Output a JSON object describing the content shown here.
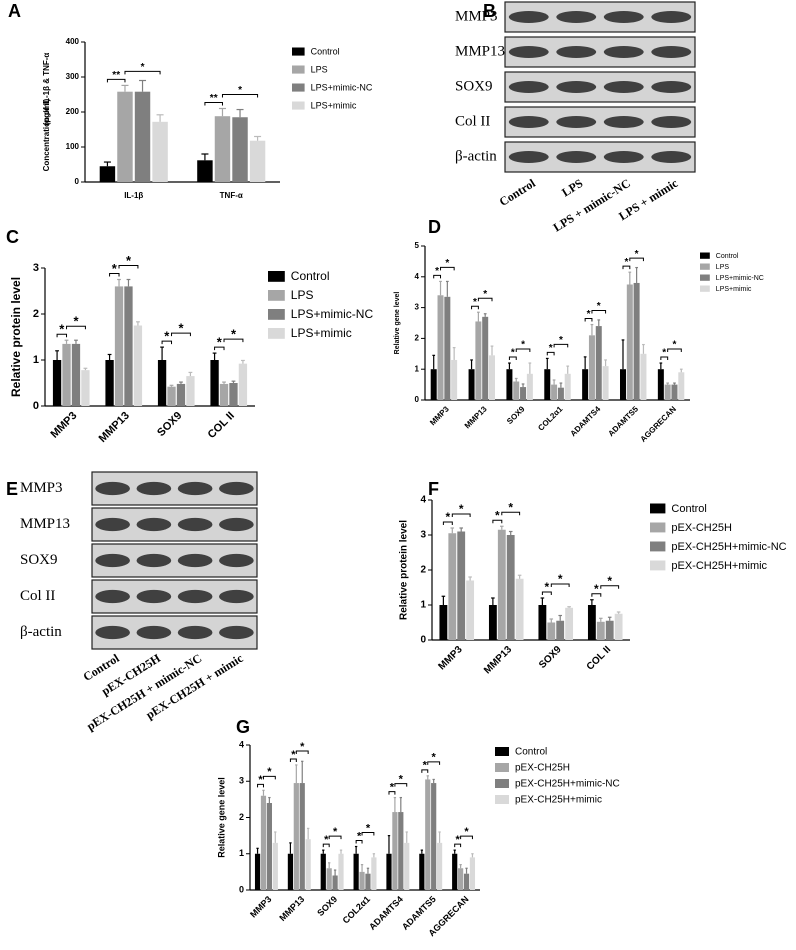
{
  "chart_data": [
    {
      "type": "bar",
      "label": "A",
      "ylabel": [
        "Concentration of IL-1β & TNF-α",
        "(pg/ml)"
      ],
      "categories": [
        "IL-1β",
        "TNF-α"
      ],
      "ylim": [
        0,
        400
      ],
      "yticks": [
        0,
        100,
        200,
        300,
        400
      ],
      "series": [
        {
          "name": "Control",
          "color": "#000000",
          "values": [
            45,
            62
          ],
          "errors": [
            12,
            18
          ]
        },
        {
          "name": "LPS",
          "color": "#a6a6a6",
          "values": [
            258,
            188
          ],
          "errors": [
            18,
            22
          ]
        },
        {
          "name": "LPS+mimic-NC",
          "color": "#7f7f7f",
          "values": [
            258,
            185
          ],
          "errors": [
            32,
            22
          ]
        },
        {
          "name": "LPS+mimic",
          "color": "#d9d9d9",
          "values": [
            172,
            118
          ],
          "errors": [
            20,
            12
          ]
        }
      ],
      "significance": [
        [
          "**",
          "*"
        ],
        [
          "**",
          "*"
        ]
      ]
    },
    {
      "type": "bar",
      "label": "C",
      "ylabel": "Relative protein level",
      "categories": [
        "MMP3",
        "MMP13",
        "SOX9",
        "COL II"
      ],
      "ylim": [
        0,
        3
      ],
      "yticks": [
        0,
        1,
        2,
        3
      ],
      "series": [
        {
          "name": "Control",
          "color": "#000000",
          "values": [
            1.0,
            1.0,
            1.0,
            1.0
          ],
          "errors": [
            0.2,
            0.12,
            0.28,
            0.15
          ]
        },
        {
          "name": "LPS",
          "color": "#a6a6a6",
          "values": [
            1.35,
            2.6,
            0.42,
            0.48
          ],
          "errors": [
            0.08,
            0.15,
            0.03,
            0.04
          ]
        },
        {
          "name": "LPS+mimic-NC",
          "color": "#7f7f7f",
          "values": [
            1.35,
            2.6,
            0.48,
            0.5
          ],
          "errors": [
            0.08,
            0.15,
            0.04,
            0.04
          ]
        },
        {
          "name": "LPS+mimic",
          "color": "#d9d9d9",
          "values": [
            0.78,
            1.75,
            0.65,
            0.92
          ],
          "errors": [
            0.04,
            0.08,
            0.08,
            0.07
          ]
        }
      ],
      "significance": [
        [
          "*",
          "*"
        ],
        [
          "*",
          "*"
        ],
        [
          "*",
          "*"
        ],
        [
          "*",
          "*"
        ]
      ]
    },
    {
      "type": "bar",
      "label": "D",
      "ylabel": "Relative gene level",
      "categories": [
        "MMP3",
        "MMP13",
        "SOX9",
        "COL2α1",
        "ADAMTS4",
        "ADAMTS5",
        "AGGRECAN"
      ],
      "ylim": [
        0,
        5
      ],
      "yticks": [
        0,
        1,
        2,
        3,
        4,
        5
      ],
      "series": [
        {
          "name": "Control",
          "color": "#000000",
          "values": [
            1,
            1,
            1,
            1,
            1,
            1,
            1
          ],
          "errors": [
            0.45,
            0.3,
            0.2,
            0.35,
            0.4,
            0.95,
            0.2
          ]
        },
        {
          "name": "LPS",
          "color": "#a6a6a6",
          "values": [
            3.4,
            2.55,
            0.6,
            0.5,
            2.1,
            3.75,
            0.5
          ],
          "errors": [
            0.45,
            0.3,
            0.1,
            0.15,
            0.35,
            0.4,
            0.05
          ]
        },
        {
          "name": "LPS+mimic-NC",
          "color": "#7f7f7f",
          "values": [
            3.35,
            2.7,
            0.42,
            0.4,
            2.4,
            3.8,
            0.5
          ],
          "errors": [
            0.5,
            0.1,
            0.1,
            0.15,
            0.2,
            0.5,
            0.05
          ]
        },
        {
          "name": "LPS+mimic",
          "color": "#d9d9d9",
          "values": [
            1.3,
            1.45,
            0.85,
            0.85,
            1.1,
            1.5,
            0.9
          ],
          "errors": [
            0.4,
            0.3,
            0.35,
            0.25,
            0.2,
            0.3,
            0.1
          ]
        }
      ],
      "significance": [
        [
          "*",
          "*"
        ],
        [
          "*",
          "*"
        ],
        [
          "*",
          "*"
        ],
        [
          "*",
          "*"
        ],
        [
          "*",
          "*"
        ],
        [
          "*",
          "*"
        ],
        [
          "*",
          "*"
        ]
      ]
    },
    {
      "type": "bar",
      "label": "F",
      "ylabel": "Relative protein level",
      "categories": [
        "MMP3",
        "MMP13",
        "SOX9",
        "COL II"
      ],
      "ylim": [
        0,
        4
      ],
      "yticks": [
        0,
        1,
        2,
        3,
        4
      ],
      "series": [
        {
          "name": "Control",
          "color": "#000000",
          "values": [
            1,
            1,
            1,
            1
          ],
          "errors": [
            0.25,
            0.2,
            0.2,
            0.15
          ]
        },
        {
          "name": "pEX-CH25H",
          "color": "#a6a6a6",
          "values": [
            3.05,
            3.15,
            0.5,
            0.52
          ],
          "errors": [
            0.15,
            0.1,
            0.1,
            0.1
          ]
        },
        {
          "name": "pEX-CH25H+mimic-NC",
          "color": "#7f7f7f",
          "values": [
            3.1,
            3.0,
            0.55,
            0.55
          ],
          "errors": [
            0.1,
            0.1,
            0.15,
            0.1
          ]
        },
        {
          "name": "pEX-CH25H+mimic",
          "color": "#d9d9d9",
          "values": [
            1.7,
            1.75,
            0.92,
            0.75
          ],
          "errors": [
            0.1,
            0.1,
            0.03,
            0.05
          ]
        }
      ],
      "significance": [
        [
          "*",
          "*"
        ],
        [
          "*",
          "*"
        ],
        [
          "*",
          "*"
        ],
        [
          "*",
          "*"
        ]
      ]
    },
    {
      "type": "bar",
      "label": "G",
      "ylabel": "Relative gene level",
      "categories": [
        "MMP3",
        "MMP13",
        "SOX9",
        "COL2α1",
        "ADAMTS4",
        "ADAMTS5",
        "AGGRECAN"
      ],
      "ylim": [
        0,
        4
      ],
      "yticks": [
        0,
        1,
        2,
        3,
        4
      ],
      "series": [
        {
          "name": "Control",
          "color": "#000000",
          "values": [
            1,
            1,
            1,
            1,
            1,
            1,
            1
          ],
          "errors": [
            0.15,
            0.3,
            0.1,
            0.2,
            0.5,
            0.1,
            0.1
          ]
        },
        {
          "name": "pEX-CH25H",
          "color": "#a6a6a6",
          "values": [
            2.6,
            2.95,
            0.6,
            0.5,
            2.15,
            3.05,
            0.6
          ],
          "errors": [
            0.15,
            0.5,
            0.15,
            0.2,
            0.4,
            0.1,
            0.1
          ]
        },
        {
          "name": "pEX-CH25H+mimic-NC",
          "color": "#7f7f7f",
          "values": [
            2.4,
            2.95,
            0.4,
            0.45,
            2.15,
            2.95,
            0.45
          ],
          "errors": [
            0.15,
            0.6,
            0.15,
            0.15,
            0.4,
            0.1,
            0.15
          ]
        },
        {
          "name": "pEX-CH25H+mimic",
          "color": "#d9d9d9",
          "values": [
            1.3,
            1.4,
            1.0,
            0.9,
            1.3,
            1.3,
            0.9
          ],
          "errors": [
            0.3,
            0.3,
            0.1,
            0.1,
            0.3,
            0.3,
            0.1
          ]
        }
      ],
      "significance": [
        [
          "*",
          "*"
        ],
        [
          "*",
          "*"
        ],
        [
          "*",
          "*"
        ],
        [
          "*",
          "*"
        ],
        [
          "*",
          "*"
        ],
        [
          "*",
          "*"
        ],
        [
          "*",
          "*"
        ]
      ]
    }
  ],
  "blots": [
    {
      "label": "B",
      "rows": [
        "MMP3",
        "MMP13",
        "SOX9",
        "Col II",
        "β-actin"
      ],
      "lanes": [
        "Control",
        "LPS",
        "LPS + mimic-NC",
        "LPS + mimic"
      ]
    },
    {
      "label": "E",
      "rows": [
        "MMP3",
        "MMP13",
        "SOX9",
        "Col II",
        "β-actin"
      ],
      "lanes": [
        "Control",
        "pEX-CH25H",
        "pEX-CH25H + mimic-NC",
        "pEX-CH25H + mimic"
      ]
    }
  ]
}
